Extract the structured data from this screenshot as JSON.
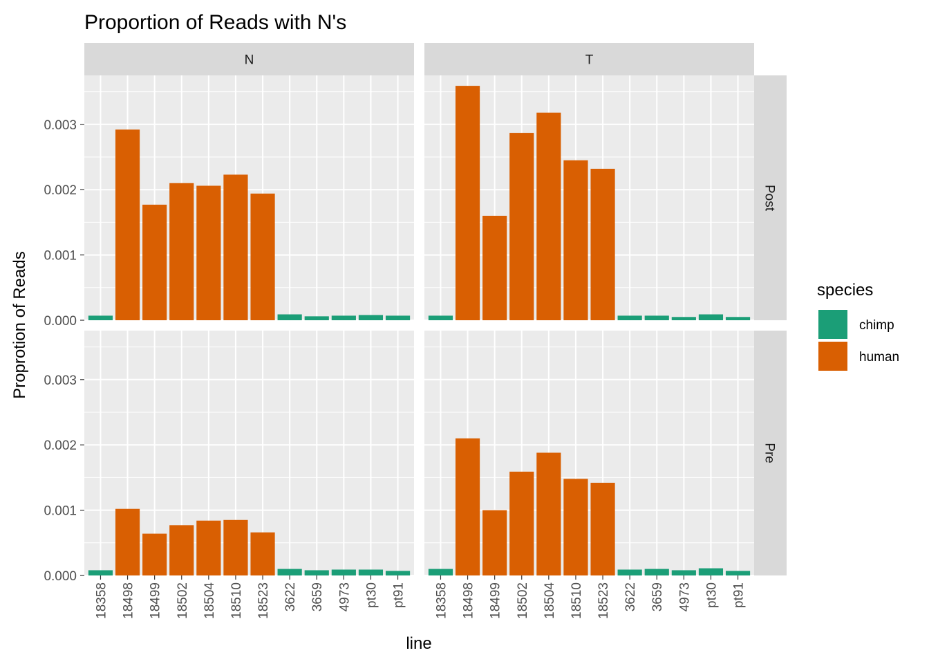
{
  "chart_data": {
    "type": "bar",
    "title": "Proportion of Reads with N's",
    "xlabel": "line",
    "ylabel": "Proprotion of Reads",
    "ylim": [
      0,
      0.00375
    ],
    "yticks": [
      "0.000",
      "0.001",
      "0.002",
      "0.003"
    ],
    "ytick_values": [
      0,
      0.001,
      0.002,
      0.003
    ],
    "grid": true,
    "legend_position": "right",
    "legend": {
      "title": "species",
      "entries": [
        {
          "name": "chimp",
          "color": "#1B9E77"
        },
        {
          "name": "human",
          "color": "#D95F02"
        }
      ]
    },
    "categories": [
      "18358",
      "18498",
      "18499",
      "18502",
      "18504",
      "18510",
      "18523",
      "3622",
      "3659",
      "4973",
      "pt30",
      "pt91"
    ],
    "species": [
      "chimp",
      "human",
      "human",
      "human",
      "human",
      "human",
      "human",
      "chimp",
      "chimp",
      "chimp",
      "chimp",
      "chimp"
    ],
    "column_facets": [
      "N",
      "T"
    ],
    "row_facets": [
      "Post",
      "Pre"
    ],
    "panels": [
      {
        "col": "N",
        "row": "Post",
        "values": [
          7e-05,
          0.00292,
          0.00177,
          0.0021,
          0.00206,
          0.00223,
          0.00194,
          9e-05,
          6e-05,
          7e-05,
          8e-05,
          7e-05
        ]
      },
      {
        "col": "T",
        "row": "Post",
        "values": [
          7e-05,
          0.00359,
          0.0016,
          0.00287,
          0.00318,
          0.00245,
          0.00232,
          7e-05,
          7e-05,
          5e-05,
          9e-05,
          5e-05
        ]
      },
      {
        "col": "N",
        "row": "Pre",
        "values": [
          8e-05,
          0.00102,
          0.00064,
          0.00077,
          0.00084,
          0.00085,
          0.00066,
          0.0001,
          8e-05,
          9e-05,
          9e-05,
          7e-05
        ]
      },
      {
        "col": "T",
        "row": "Pre",
        "values": [
          0.0001,
          0.0021,
          0.001,
          0.00159,
          0.00188,
          0.00148,
          0.00142,
          9e-05,
          0.0001,
          8e-05,
          0.00011,
          7e-05
        ]
      }
    ]
  }
}
